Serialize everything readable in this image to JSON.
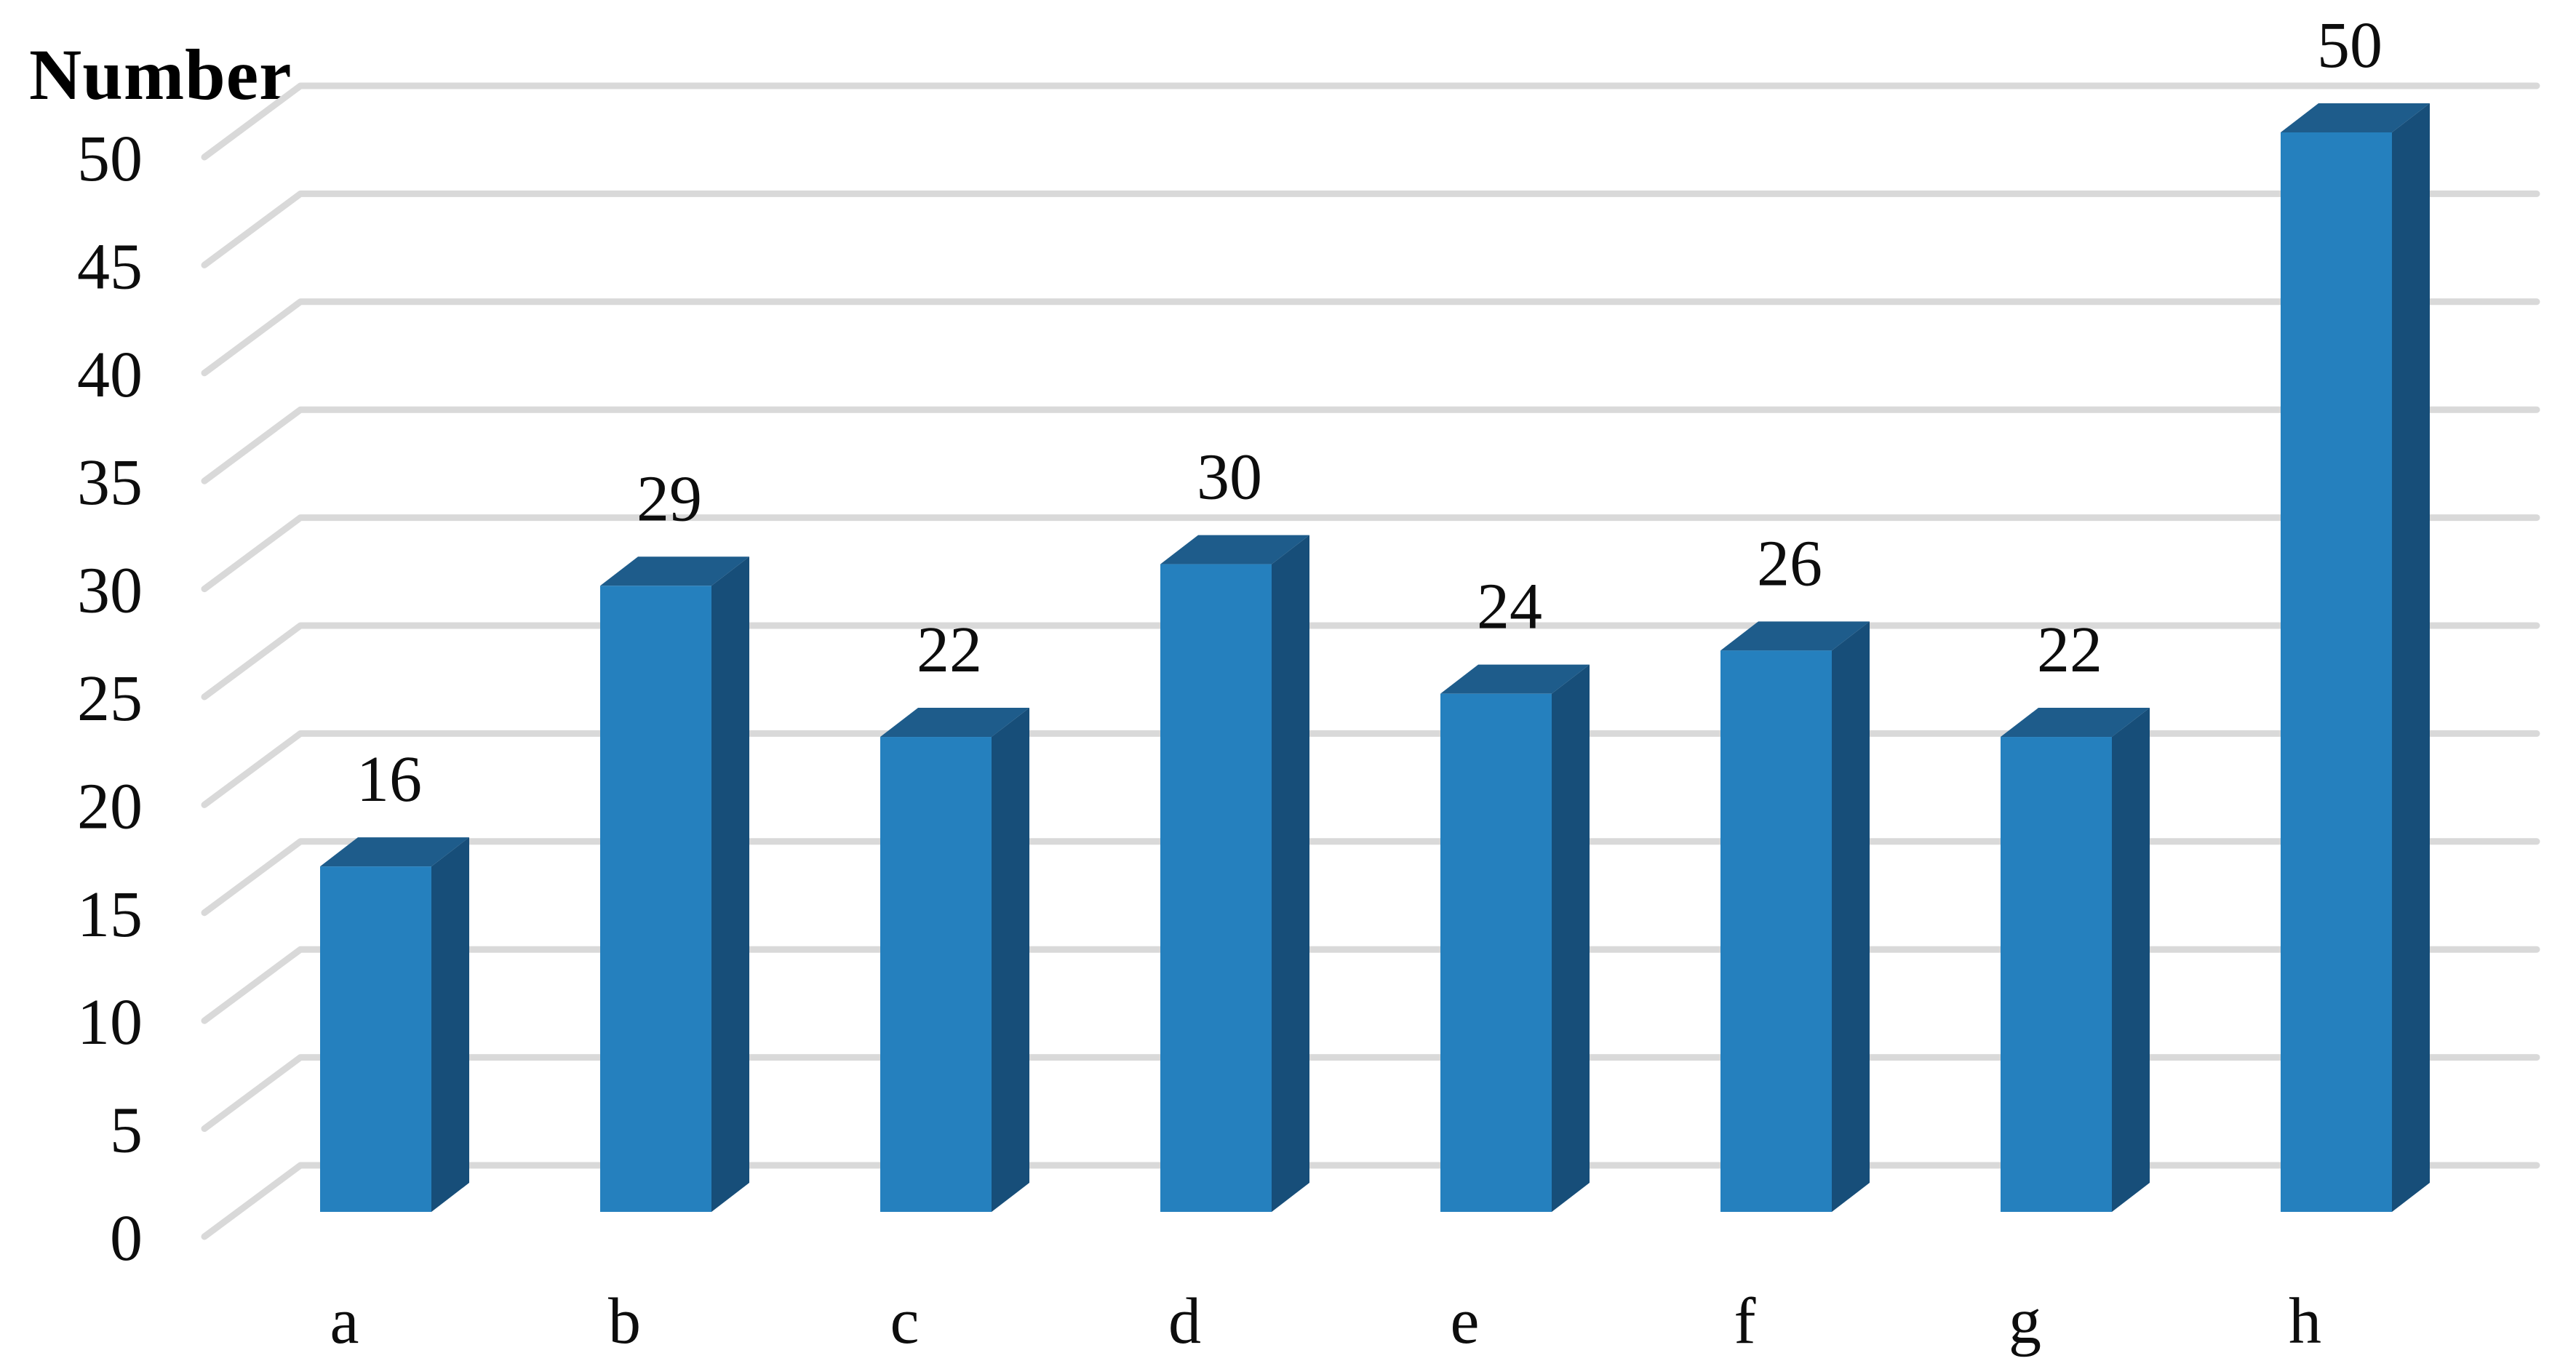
{
  "chart_data": {
    "type": "bar",
    "variant": "3d-column",
    "title": "",
    "ylabel": "Number",
    "xlabel": "",
    "categories": [
      "a",
      "b",
      "c",
      "d",
      "e",
      "f",
      "g",
      "h"
    ],
    "series": [
      {
        "name": "Number",
        "values": [
          16,
          29,
          22,
          30,
          24,
          26,
          22,
          50
        ]
      }
    ],
    "data_labels": [
      "16",
      "29",
      "22",
      "30",
      "24",
      "26",
      "22",
      "50"
    ],
    "yticks": [
      0,
      5,
      10,
      15,
      20,
      25,
      30,
      35,
      40,
      45,
      50
    ],
    "ylim": [
      0,
      50
    ],
    "grid": true,
    "legend": false,
    "colors": {
      "bar_front": "#2580BE",
      "bar_top": "#1E5C8B",
      "bar_side": "#174E79",
      "gridline": "#D9D9D9",
      "text": "#0D0D0D",
      "background": "#FFFFFF"
    }
  }
}
